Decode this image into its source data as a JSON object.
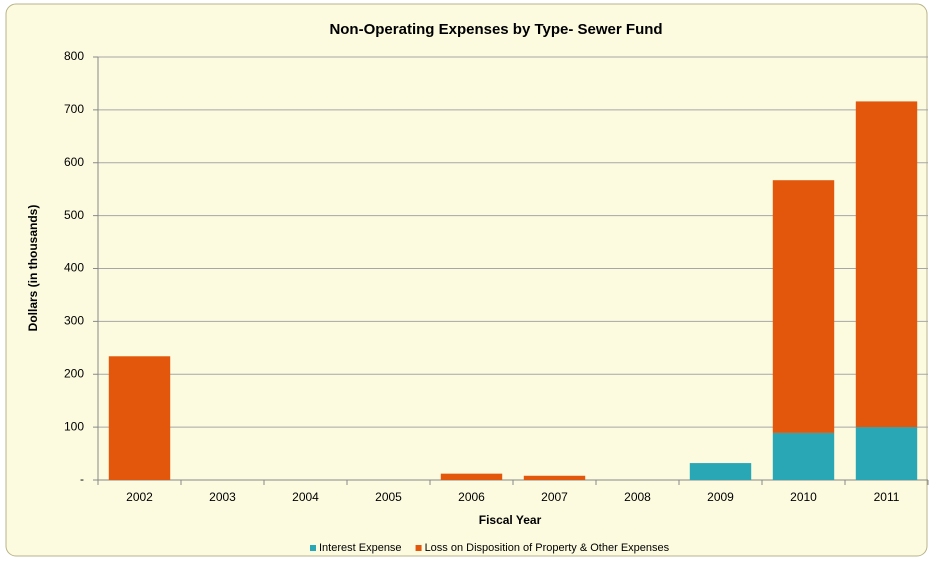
{
  "chart_data": {
    "type": "bar",
    "stacked": true,
    "title": "Non-Operating Expenses by Type- Sewer Fund",
    "x_label": "Fiscal Year",
    "y_label": "Dollars (in thousands)",
    "categories": [
      "2002",
      "2003",
      "2004",
      "2005",
      "2006",
      "2007",
      "2008",
      "2009",
      "2010",
      "2011"
    ],
    "series": [
      {
        "name": "Interest Expense",
        "color": "#2aa7b5",
        "values": [
          0,
          0,
          0,
          0,
          0,
          0,
          0,
          32,
          89,
          100
        ]
      },
      {
        "name": "Loss on Disposition of Property & Other Expenses",
        "color": "#e2570c",
        "values": [
          234,
          0,
          0,
          0,
          12,
          8,
          0,
          0,
          478,
          616
        ]
      }
    ],
    "ylim": [
      0,
      800
    ],
    "yticks": [
      {
        "value": 0,
        "label": "-"
      },
      100,
      200,
      300,
      400,
      500,
      600,
      700,
      800
    ],
    "grid": true,
    "legend": "bottom"
  }
}
